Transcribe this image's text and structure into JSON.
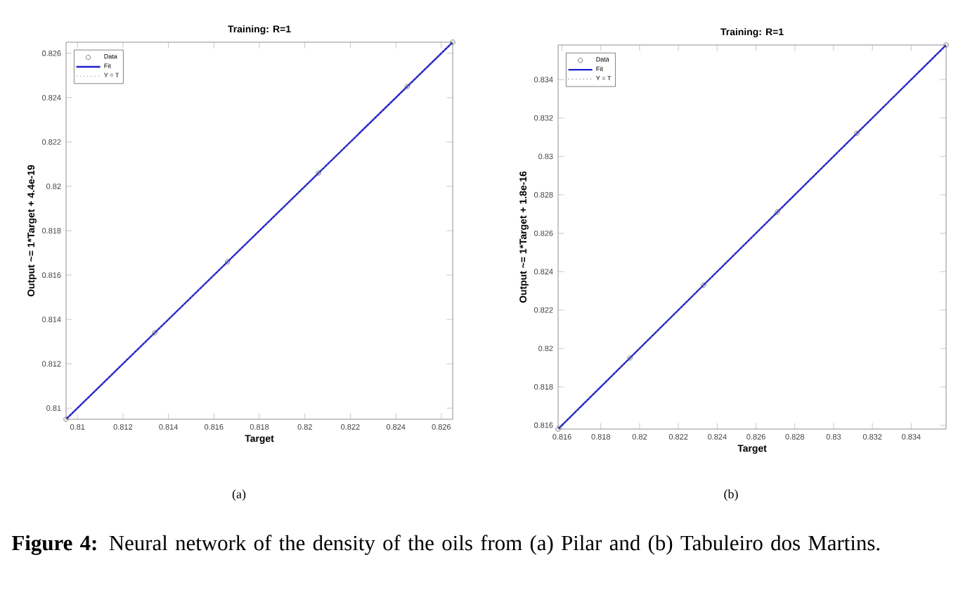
{
  "chart_data": [
    {
      "type": "line",
      "title": "Training: R=1",
      "xlabel": "Target",
      "ylabel": "Output ~= 1*Target + 4.4e-19",
      "xlim": [
        0.8095,
        0.8265
      ],
      "ylim": [
        0.8095,
        0.8265
      ],
      "xticks": [
        0.81,
        0.812,
        0.814,
        0.816,
        0.818,
        0.82,
        0.822,
        0.824,
        0.826
      ],
      "yticks": [
        0.81,
        0.812,
        0.814,
        0.816,
        0.818,
        0.82,
        0.822,
        0.824,
        0.826
      ],
      "grid": false,
      "legend": "top left",
      "series": [
        {
          "name": "Data",
          "type": "scatter",
          "marker": "circle",
          "color": "#555555",
          "x": [
            0.8095,
            0.8134,
            0.8166,
            0.8206,
            0.8245,
            0.8265
          ],
          "values": [
            0.8095,
            0.8134,
            0.8166,
            0.8206,
            0.8245,
            0.8265
          ]
        },
        {
          "name": "Fit",
          "line_style": "solid",
          "color": "#1f1fd0",
          "x": [
            0.8095,
            0.8265
          ],
          "values": [
            0.8095,
            0.8265
          ]
        },
        {
          "name": "Y = T",
          "line_style": "dotted",
          "color": "#888888",
          "x": [
            0.8095,
            0.8265
          ],
          "values": [
            0.8095,
            0.8265
          ]
        }
      ],
      "annotations": [
        "(a)"
      ]
    },
    {
      "type": "line",
      "title": "Training: R=1",
      "xlabel": "Target",
      "ylabel": "Output ~= 1*Target + 1.8e-16",
      "xlim": [
        0.8158,
        0.8358
      ],
      "ylim": [
        0.8158,
        0.8358
      ],
      "xticks": [
        0.816,
        0.818,
        0.82,
        0.822,
        0.824,
        0.826,
        0.828,
        0.83,
        0.832,
        0.834
      ],
      "yticks": [
        0.816,
        0.818,
        0.82,
        0.822,
        0.824,
        0.826,
        0.828,
        0.83,
        0.832,
        0.834
      ],
      "grid": false,
      "legend": "top left",
      "series": [
        {
          "name": "Data",
          "type": "scatter",
          "marker": "circle",
          "color": "#555555",
          "x": [
            0.8158,
            0.8195,
            0.8233,
            0.8271,
            0.8312,
            0.8358
          ],
          "values": [
            0.8158,
            0.8195,
            0.8233,
            0.8271,
            0.8312,
            0.8358
          ]
        },
        {
          "name": "Fit",
          "line_style": "solid",
          "color": "#1f1fd0",
          "x": [
            0.8158,
            0.8358
          ],
          "values": [
            0.8158,
            0.8358
          ]
        },
        {
          "name": "Y = T",
          "line_style": "dotted",
          "color": "#888888",
          "x": [
            0.8158,
            0.8358
          ],
          "values": [
            0.8158,
            0.8358
          ]
        }
      ],
      "annotations": [
        "(b)",
        "**Figure 4:** Neural network of the density of the oils from (a) Pilar and (b) Tabuleiro dos Martins."
      ]
    }
  ]
}
